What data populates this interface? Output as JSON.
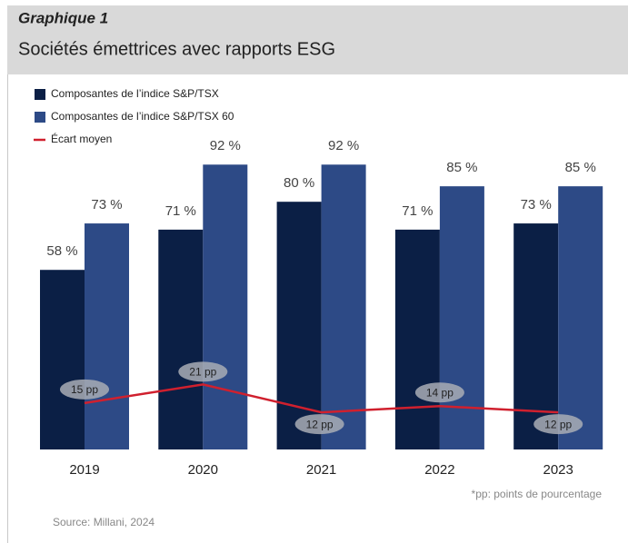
{
  "chart_data": {
    "type": "bar",
    "title": "Graphique 1",
    "subtitle": "Sociétés émettrices avec rapports ESG",
    "categories": [
      "2019",
      "2020",
      "2021",
      "2022",
      "2023"
    ],
    "series": [
      {
        "name": "Composantes de l’indice S&P/TSX",
        "color": "#0b1f45",
        "values": [
          58,
          71,
          80,
          71,
          73
        ],
        "value_labels": [
          "58 %",
          "71 %",
          "80 %",
          "71 %",
          "73 %"
        ]
      },
      {
        "name": "Composantes de l’indice S&P/TSX 60",
        "color": "#2d4a86",
        "values": [
          73,
          92,
          92,
          85,
          85
        ],
        "value_labels": [
          "73 %",
          "92 %",
          "92 %",
          "85 %",
          "85 %"
        ]
      },
      {
        "name": "Écart moyen",
        "type": "line",
        "color": "#d0202e",
        "values": [
          15,
          21,
          12,
          14,
          12
        ],
        "value_labels": [
          "15 pp",
          "21 pp",
          "12 pp",
          "14 pp",
          "12 pp"
        ]
      }
    ],
    "ylim": [
      0,
      100
    ],
    "footnote": "*pp: points de pourcentage",
    "source": "Source: Millani, 2024"
  }
}
